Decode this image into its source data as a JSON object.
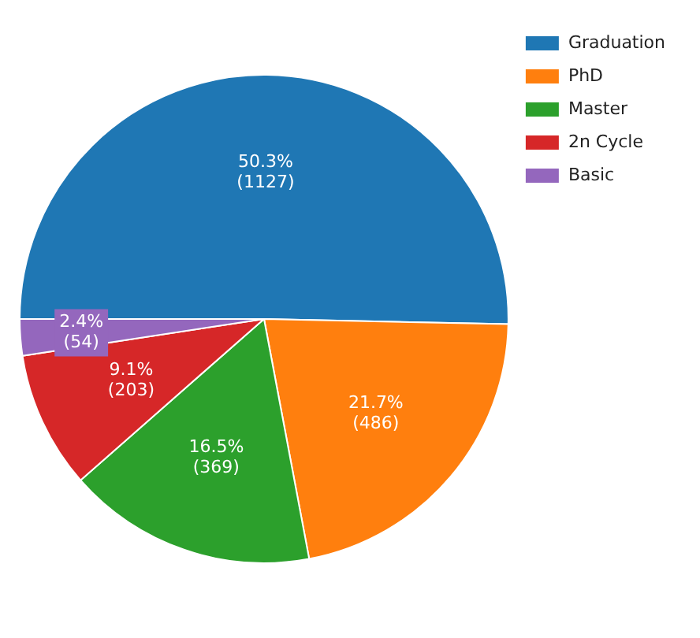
{
  "chart_data": {
    "type": "pie",
    "categories": [
      "Graduation",
      "PhD",
      "Master",
      "2n Cycle",
      "Basic"
    ],
    "values": [
      1127,
      486,
      369,
      203,
      54
    ],
    "colors": [
      "#1f77b4",
      "#ff7f0e",
      "#2ca02c",
      "#d62728",
      "#9467bd"
    ],
    "value_labels": [
      "50.3%\n(1127)",
      "21.7%\n(486)",
      "16.5%\n(369)",
      "9.1%\n(203)",
      "2.4%\n(54)"
    ],
    "legend": "top right"
  }
}
